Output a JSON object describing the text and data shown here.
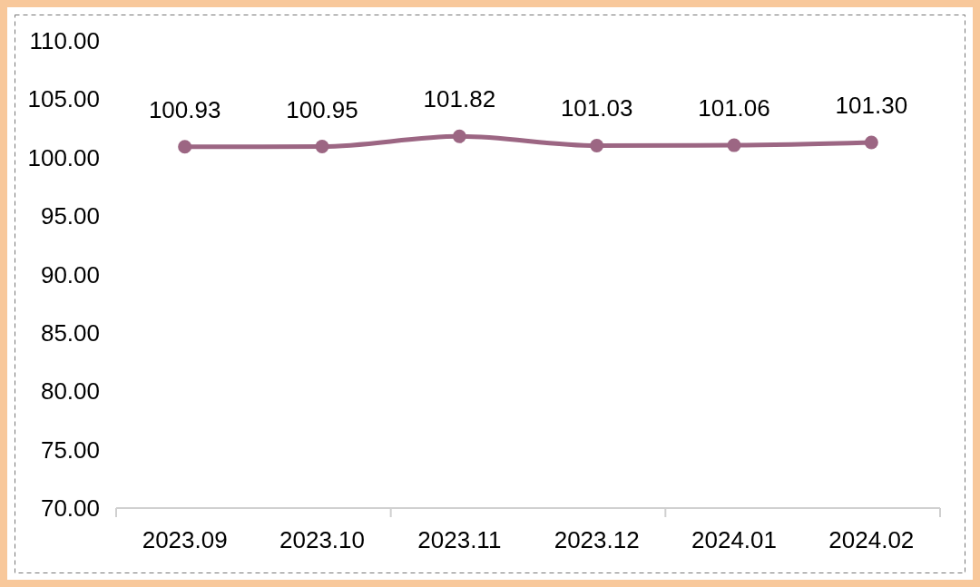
{
  "chart_data": {
    "type": "line",
    "categories": [
      "2023.09",
      "2023.10",
      "2023.11",
      "2023.12",
      "2024.01",
      "2024.02"
    ],
    "series": [
      {
        "color": "#9c6683",
        "values": [
          100.93,
          100.95,
          101.82,
          101.03,
          101.06,
          101.3
        ],
        "value_labels": [
          "100.93",
          "100.95",
          "101.82",
          "101.03",
          "101.06",
          "101.30"
        ]
      }
    ],
    "ylim": [
      70,
      110
    ],
    "yticks": [
      {
        "value": 70,
        "label": "70.00"
      },
      {
        "value": 75,
        "label": "75.00"
      },
      {
        "value": 80,
        "label": "80.00"
      },
      {
        "value": 85,
        "label": "85.00"
      },
      {
        "value": 90,
        "label": "90.00"
      },
      {
        "value": 95,
        "label": "95.00"
      },
      {
        "value": 100,
        "label": "100.00"
      },
      {
        "value": 105,
        "label": "105.00"
      },
      {
        "value": 110,
        "label": "110.00"
      }
    ],
    "marker": "circle",
    "line_style": "solid"
  }
}
